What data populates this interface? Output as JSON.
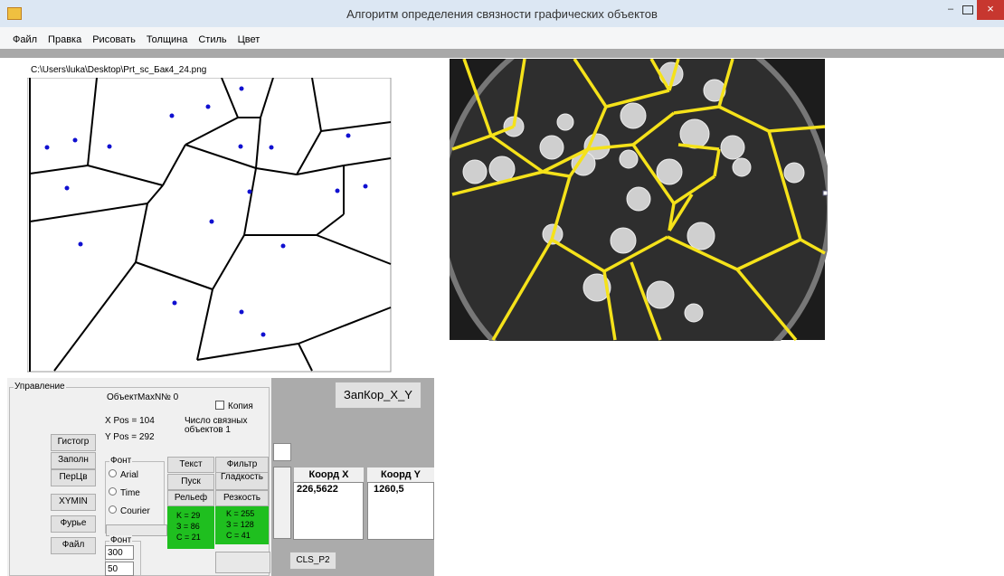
{
  "window": {
    "title": "Алгоритм определения связности графических объектов"
  },
  "menu": [
    "Файл",
    "Правка",
    "Рисовать",
    "Толщина",
    "Стиль",
    "Цвет"
  ],
  "file_path": "C:\\Users\\luka\\Desktop\\Prt_sc_Бак4_24.png",
  "panel": {
    "group_title": "Управление",
    "object_max": "ОбъектMaxN№ 0",
    "copy_checkbox": "Копия",
    "x_pos": "X Pos = 104",
    "y_pos": "Y Pos = 292",
    "connected_count": [
      "Число связных",
      "объектов  1"
    ],
    "left_buttons": [
      "Гистогр",
      "Заполн",
      "ПерЦв",
      "XYMIN",
      "Фурье",
      "Файл"
    ],
    "font_group": {
      "title": "Фонт",
      "options": [
        "Arial",
        "Time",
        "Courier"
      ]
    },
    "size_group": {
      "title": "Фонт",
      "fields": [
        "300",
        "50"
      ]
    },
    "buttons": {
      "text": "Текст",
      "start": "Пуск",
      "filter": "Фильтр",
      "smooth": "Гладкость",
      "relief": "Рельеф",
      "sharpness": "Резкость"
    },
    "relief_values": [
      "K = 29",
      "З = 86",
      "C = 21"
    ],
    "sharpness_values": [
      "K = 255",
      "З = 128",
      "C = 41"
    ],
    "save_button": "ЗапКор_X_Y",
    "grid": {
      "headers": [
        "Коорд X",
        "Коорд Y"
      ],
      "values": [
        "226,5622",
        "1260,5"
      ]
    },
    "cls_button": "CLS_P2"
  }
}
